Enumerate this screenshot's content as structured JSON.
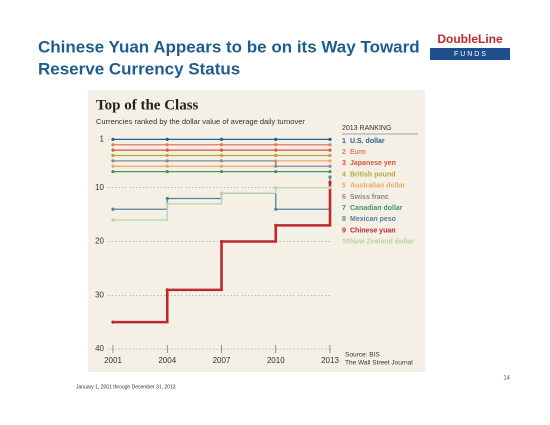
{
  "slide": {
    "title_line1": "Chinese Yuan Appears to be on its Way Toward",
    "title_line2": "Reserve Currency Status",
    "logo": "DoubleLine",
    "logo_sub": "F U N D S",
    "footnote": "January 1, 2001 through December 31, 2013",
    "page_number": "14"
  },
  "chart_data": {
    "type": "step",
    "title": "Top of the Class",
    "subtitle": "Currencies ranked by the dollar value of average daily turnover",
    "legend_title": "2013 RANKING",
    "source": "Source: BIS",
    "source_publisher": "The Wall Street Journal",
    "x": [
      2001,
      2004,
      2007,
      2010,
      2013
    ],
    "xlim": [
      2001,
      2013
    ],
    "xticks": [
      2001,
      2004,
      2007,
      2010,
      2013
    ],
    "ylim": [
      40,
      0
    ],
    "yticks": [
      1,
      10,
      20,
      30,
      40
    ],
    "grid": true,
    "series": [
      {
        "name": "U.S. dollar",
        "color": "#2b5f8a",
        "values": [
          1,
          1,
          1,
          1,
          1
        ]
      },
      {
        "name": "Euro",
        "color": "#e07a6a",
        "values": [
          2,
          2,
          2,
          2,
          2
        ]
      },
      {
        "name": "Japanese yen",
        "color": "#d9533a",
        "values": [
          3,
          3,
          3,
          3,
          3
        ]
      },
      {
        "name": "British pound",
        "color": "#b5a93a",
        "values": [
          4,
          4,
          4,
          4,
          4
        ]
      },
      {
        "name": "Australian dollar",
        "color": "#f0a860",
        "values": [
          6,
          6,
          6,
          5,
          5
        ]
      },
      {
        "name": "Swiss franc",
        "color": "#8a8a8a",
        "values": [
          5,
          5,
          5,
          6,
          6
        ]
      },
      {
        "name": "Canadian dollar",
        "color": "#3a9a6a",
        "values": [
          7,
          7,
          7,
          7,
          7
        ]
      },
      {
        "name": "Mexican peso",
        "color": "#5a7fa0",
        "values": [
          14,
          12,
          11,
          14,
          8
        ]
      },
      {
        "name": "Chinese yuan",
        "color": "#c0282d",
        "values": [
          35,
          29,
          20,
          17,
          9
        ]
      },
      {
        "name": "New Zealand dollar",
        "color": "#b8d4a8",
        "values": [
          16,
          13,
          11,
          10,
          10
        ]
      }
    ]
  }
}
